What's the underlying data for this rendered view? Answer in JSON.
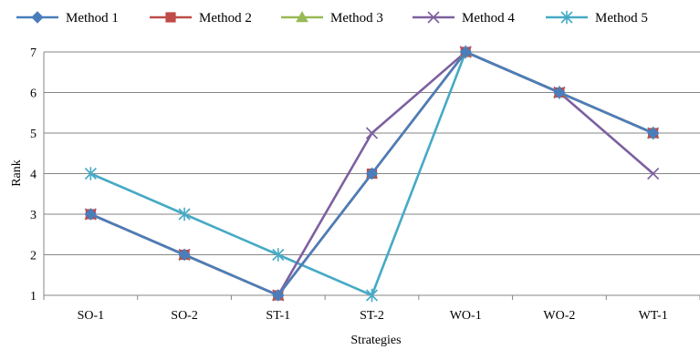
{
  "chart_data": {
    "type": "line",
    "title": "",
    "xlabel": "Strategies",
    "ylabel": "Rank",
    "categories": [
      "SO-1",
      "SO-2",
      "ST-1",
      "ST-2",
      "WO-1",
      "WO-2",
      "WT-1"
    ],
    "ylim": [
      1,
      7
    ],
    "yticks": [
      1,
      2,
      3,
      4,
      5,
      6,
      7
    ],
    "grid": true,
    "legend_position": "top",
    "series": [
      {
        "name": "Method 1",
        "values": [
          3,
          2,
          1,
          4,
          7,
          6,
          5
        ],
        "color": "#4a7ebb",
        "marker": "diamond"
      },
      {
        "name": "Method 2",
        "values": [
          3,
          2,
          1,
          4,
          7,
          6,
          5
        ],
        "color": "#be4b48",
        "marker": "square"
      },
      {
        "name": "Method 3",
        "values": [
          3,
          2,
          1,
          4,
          7,
          6,
          5
        ],
        "color": "#98b954",
        "marker": "triangle"
      },
      {
        "name": "Method 4",
        "values": [
          3,
          2,
          1,
          5,
          7,
          6,
          4
        ],
        "color": "#7d60a0",
        "marker": "x"
      },
      {
        "name": "Method 5",
        "values": [
          4,
          3,
          2,
          1,
          7,
          6,
          5
        ],
        "color": "#46aac5",
        "marker": "star"
      }
    ]
  }
}
